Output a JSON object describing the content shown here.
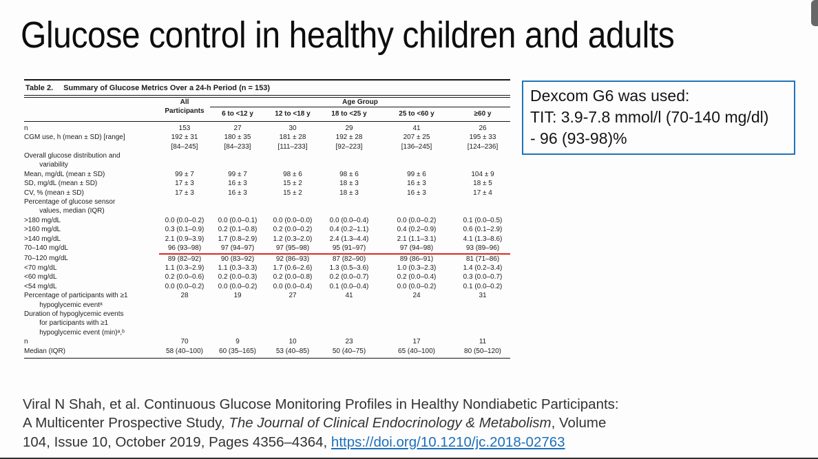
{
  "title": "Glucose control in healthy children and adults",
  "note_box": {
    "border_color": "#1e73b8",
    "lines": [
      "Dexcom G6 was used:",
      "TIT: 3.9-7.8 mmol/l (70-140 mg/dl)",
      "- 96 (93-98)%"
    ]
  },
  "table": {
    "caption_label": "Table 2.",
    "caption_text": "Summary of Glucose Metrics Over a 24-h Period (n = 153)",
    "age_group_header": "Age Group",
    "highlight_color": "#d92b1f",
    "col_headers": [
      "All\nParticipants",
      "6 to <12 y",
      "12 to <18 y",
      "18 to <25 y",
      "25 to <60 y",
      "≥60 y"
    ],
    "rows": [
      {
        "label": "n",
        "values": [
          "153",
          "27",
          "30",
          "29",
          "41",
          "26"
        ]
      },
      {
        "label": "CGM use, h (mean ± SD) [range]",
        "values": [
          "192 ± 31\n[84–245]",
          "180 ± 35\n[84–233]",
          "181 ± 28\n[111–233]",
          "192 ± 28\n[92–223]",
          "207 ± 25\n[136–245]",
          "195 ± 33\n[124–236]"
        ]
      },
      {
        "label": "Overall glucose distribution and\n        variability",
        "section": true,
        "values": []
      },
      {
        "label": "Mean, mg/dL (mean ± SD)",
        "indent": true,
        "values": [
          "99 ± 7",
          "99 ± 7",
          "98 ± 6",
          "98 ± 6",
          "99 ± 6",
          "104 ± 9"
        ]
      },
      {
        "label": "SD, mg/dL (mean ± SD)",
        "indent": true,
        "values": [
          "17 ± 3",
          "16 ± 3",
          "15 ± 2",
          "18 ± 3",
          "16 ± 3",
          "18 ± 5"
        ]
      },
      {
        "label": "CV, % (mean ± SD)",
        "indent": true,
        "values": [
          "17 ± 3",
          "16 ± 3",
          "15 ± 2",
          "18 ± 3",
          "16 ± 3",
          "17 ± 4"
        ]
      },
      {
        "label": "Percentage of glucose sensor\n        values, median (IQR)",
        "section": true,
        "values": []
      },
      {
        "label": ">180 mg/dL",
        "values": [
          "0.0 (0.0–0.2)",
          "0.0 (0.0–0.1)",
          "0.0 (0.0–0.0)",
          "0.0 (0.0–0.4)",
          "0.0 (0.0–0.2)",
          "0.1 (0.0–0.5)"
        ]
      },
      {
        "label": ">160 mg/dL",
        "values": [
          "0.3 (0.1–0.9)",
          "0.2 (0.1–0.8)",
          "0.2 (0.0–0.2)",
          "0.4 (0.2–1.1)",
          "0.4 (0.2–0.9)",
          "0.6 (0.1–2.9)"
        ]
      },
      {
        "label": ">140 mg/dL",
        "values": [
          "2.1 (0.9–3.9)",
          "1.7 (0.8–2.9)",
          "1.2 (0.3–2.0)",
          "2.4 (1.3–4.4)",
          "2.1 (1.1–3.1)",
          "4.1 (1.3–8.6)"
        ]
      },
      {
        "label": "70–140 mg/dL",
        "underline": true,
        "values": [
          "96 (93–98)",
          "97 (94–97)",
          "97 (95–98)",
          "95 (91–97)",
          "97 (94–98)",
          "93 (89–96)"
        ]
      },
      {
        "label": "70–120 mg/dL",
        "values": [
          "89 (82–92)",
          "90 (83–92)",
          "92 (86–93)",
          "87 (82–90)",
          "89 (86–91)",
          "81 (71–86)"
        ]
      },
      {
        "label": "<70 mg/dL",
        "values": [
          "1.1 (0.3–2.9)",
          "1.1 (0.3–3.3)",
          "1.7 (0.6–2.6)",
          "1.3 (0.5–3.6)",
          "1.0 (0.3–2.3)",
          "1.4 (0.2–3.4)"
        ]
      },
      {
        "label": "<60 mg/dL",
        "values": [
          "0.2 (0.0–0.6)",
          "0.2 (0.0–0.3)",
          "0.2 (0.0–0.8)",
          "0.2 (0.0–0.7)",
          "0.2 (0.0–0.4)",
          "0.3 (0.0–0.7)"
        ]
      },
      {
        "label": "<54 mg/dL",
        "values": [
          "0.0 (0.0–0.2)",
          "0.0 (0.0–0.2)",
          "0.0 (0.0–0.4)",
          "0.1 (0.0–0.4)",
          "0.0 (0.0–0.2)",
          "0.1 (0.0–0.2)"
        ]
      },
      {
        "label": "Percentage of participants with ≥1\n        hypoglycemic eventᵃ",
        "values": [
          "28",
          "19",
          "27",
          "41",
          "24",
          "31"
        ]
      },
      {
        "label": "Duration of hypoglycemic events\n        for participants with ≥1\n        hypoglycemic event (min)ᵃ,ᵇ",
        "section": true,
        "values": []
      },
      {
        "label": "n",
        "indent": true,
        "values": [
          "70",
          "9",
          "10",
          "23",
          "17",
          "11"
        ]
      },
      {
        "label": "Median (IQR)",
        "indent": true,
        "values": [
          "58 (40–100)",
          "60 (35–165)",
          "53 (40–85)",
          "50 (40–75)",
          "65 (40–100)",
          "80 (50–120)"
        ]
      }
    ]
  },
  "citation": {
    "link_color": "#1d6fb8",
    "link": "https://doi.org/10.1210/jc.2018-02763",
    "lines": [
      [
        {
          "t": "Viral N Shah, et al. Continuous Glucose Monitoring Profiles in Healthy Nondiabetic Participants:"
        }
      ],
      [
        {
          "t": "A Multicenter Prospective Study, "
        },
        {
          "t": "The Journal of Clinical Endocrinology & Metabolism",
          "i": true
        },
        {
          "t": ", Volume"
        }
      ],
      [
        {
          "t": "104, Issue 10, October 2019, Pages 4356–4364, "
        },
        {
          "t": "https://doi.org/10.1210/jc.2018-02763",
          "link": true
        }
      ]
    ]
  }
}
